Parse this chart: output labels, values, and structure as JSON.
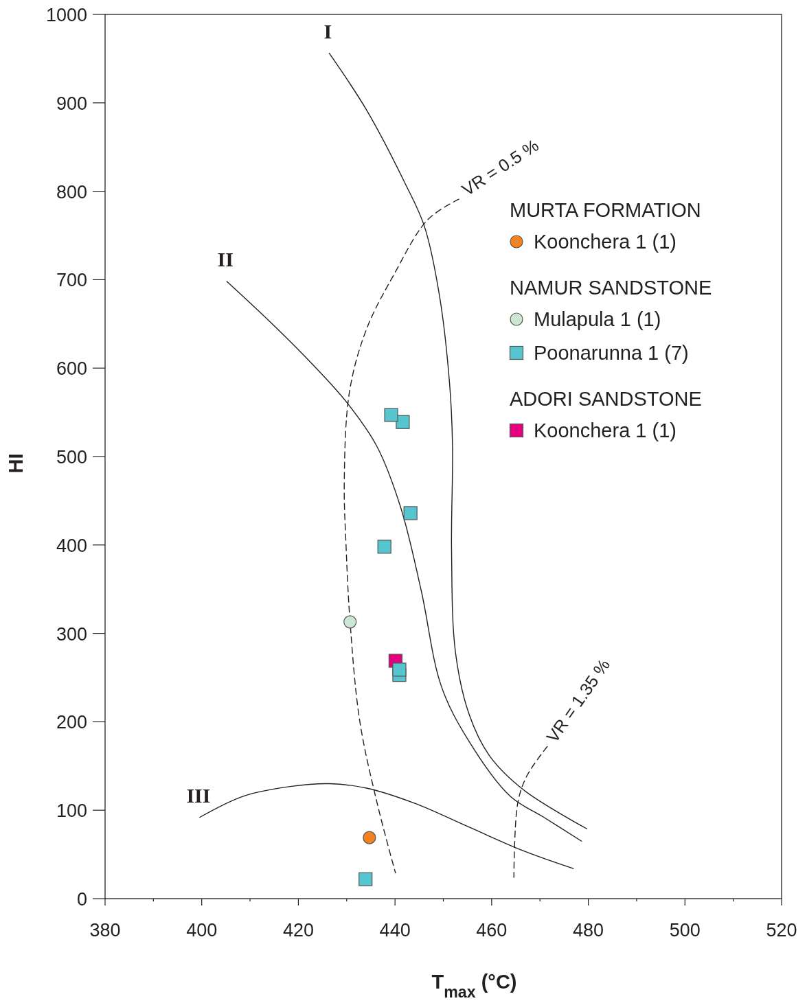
{
  "chart_data": {
    "type": "scatter",
    "xlabel": "T$_{max}$ (°C)",
    "ylabel": "HI",
    "xlim": [
      380,
      520
    ],
    "ylim": [
      0,
      1000
    ],
    "xticks": [
      380,
      {
        "value": 390,
        "label": null
      },
      400,
      {
        "value": 410,
        "label": null
      },
      420,
      {
        "value": 430,
        "label": null
      },
      440,
      {
        "value": 450,
        "label": null
      },
      460,
      {
        "value": 470,
        "label": null
      },
      480,
      {
        "value": 490,
        "label": null
      },
      500,
      {
        "value": 510,
        "label": null
      },
      520
    ],
    "yticks": [
      0,
      100,
      200,
      300,
      400,
      500,
      600,
      700,
      800,
      900,
      1000
    ],
    "grid": false,
    "legend": "top right",
    "annotations": [
      "MURTA FORMATION",
      "NAMUR SANDSTONE",
      "ADORI SANDSTONE"
    ],
    "series": [
      {
        "name": "Koonchera 1 (1)",
        "color": "#f58220",
        "marker": "circle",
        "x": [
          434.7
        ],
        "values": [
          69
        ]
      },
      {
        "name": "Mulapula 1 (1)",
        "color": "#cce6d4",
        "marker": "circle",
        "x": [
          430.7
        ],
        "values": [
          313
        ]
      },
      {
        "name": "Poonarunna 1 (7)",
        "color": "#55c5d0",
        "marker": "square",
        "x": [
          439.2,
          441.6,
          443.2,
          437.8,
          440.9,
          440.9,
          433.9
        ],
        "values": [
          547,
          539,
          436,
          398,
          259,
          253,
          22
        ]
      },
      {
        "name": "Koonchera 1 (1)",
        "color": "#e6007e",
        "marker": "square",
        "x": [
          440.1
        ],
        "values": [
          269
        ]
      },
      {
        "name": "I",
        "type": "line",
        "color": "#231f20",
        "line_style": "solid",
        "x": [
          426.4,
          434.1,
          441.9,
          446.1,
          449.2,
          451.3,
          451.9,
          451.7,
          452.5,
          455.3,
          459.5,
          466.6,
          479.7
        ],
        "values": [
          956,
          892,
          811,
          760,
          682,
          582,
          512,
          395,
          279,
          209,
          162,
          123,
          79
        ]
      },
      {
        "name": "II",
        "type": "line",
        "color": "#231f20",
        "line_style": "solid",
        "x": [
          405.2,
          414.4,
          422.8,
          429.9,
          436.2,
          441.2,
          445.4,
          449.6,
          455.3,
          463.8,
          470.8,
          478.6
        ],
        "values": [
          698,
          651,
          605,
          562,
          512,
          442,
          349,
          240,
          178,
          116,
          92,
          65
        ]
      },
      {
        "name": "III",
        "type": "line",
        "color": "#231f20",
        "line_style": "solid",
        "x": [
          399.6,
          408.7,
          418.6,
          426.4,
          434.1,
          444,
          455.3,
          466.6,
          476.9
        ],
        "values": [
          92,
          116,
          127,
          130,
          125,
          108,
          81,
          54,
          34
        ]
      },
      {
        "name": "VR = 0.5 %",
        "type": "line",
        "color": "#231f20",
        "line_style": "dashed",
        "x": [
          453.2,
          446.8,
          439.8,
          434.1,
          430.6,
          429.5,
          429.9,
          430.7,
          432.7,
          436.3,
          440.1
        ],
        "values": [
          791,
          768,
          706,
          644,
          574,
          473,
          395,
          313,
          201,
          108,
          29
        ]
      },
      {
        "name": "VR = 1.35 %",
        "type": "line",
        "color": "#231f20",
        "line_style": "dashed",
        "x": [
          471.5,
          467.3,
          465.4,
          464.6
        ],
        "values": [
          172,
          139,
          108,
          24
        ]
      }
    ]
  }
}
